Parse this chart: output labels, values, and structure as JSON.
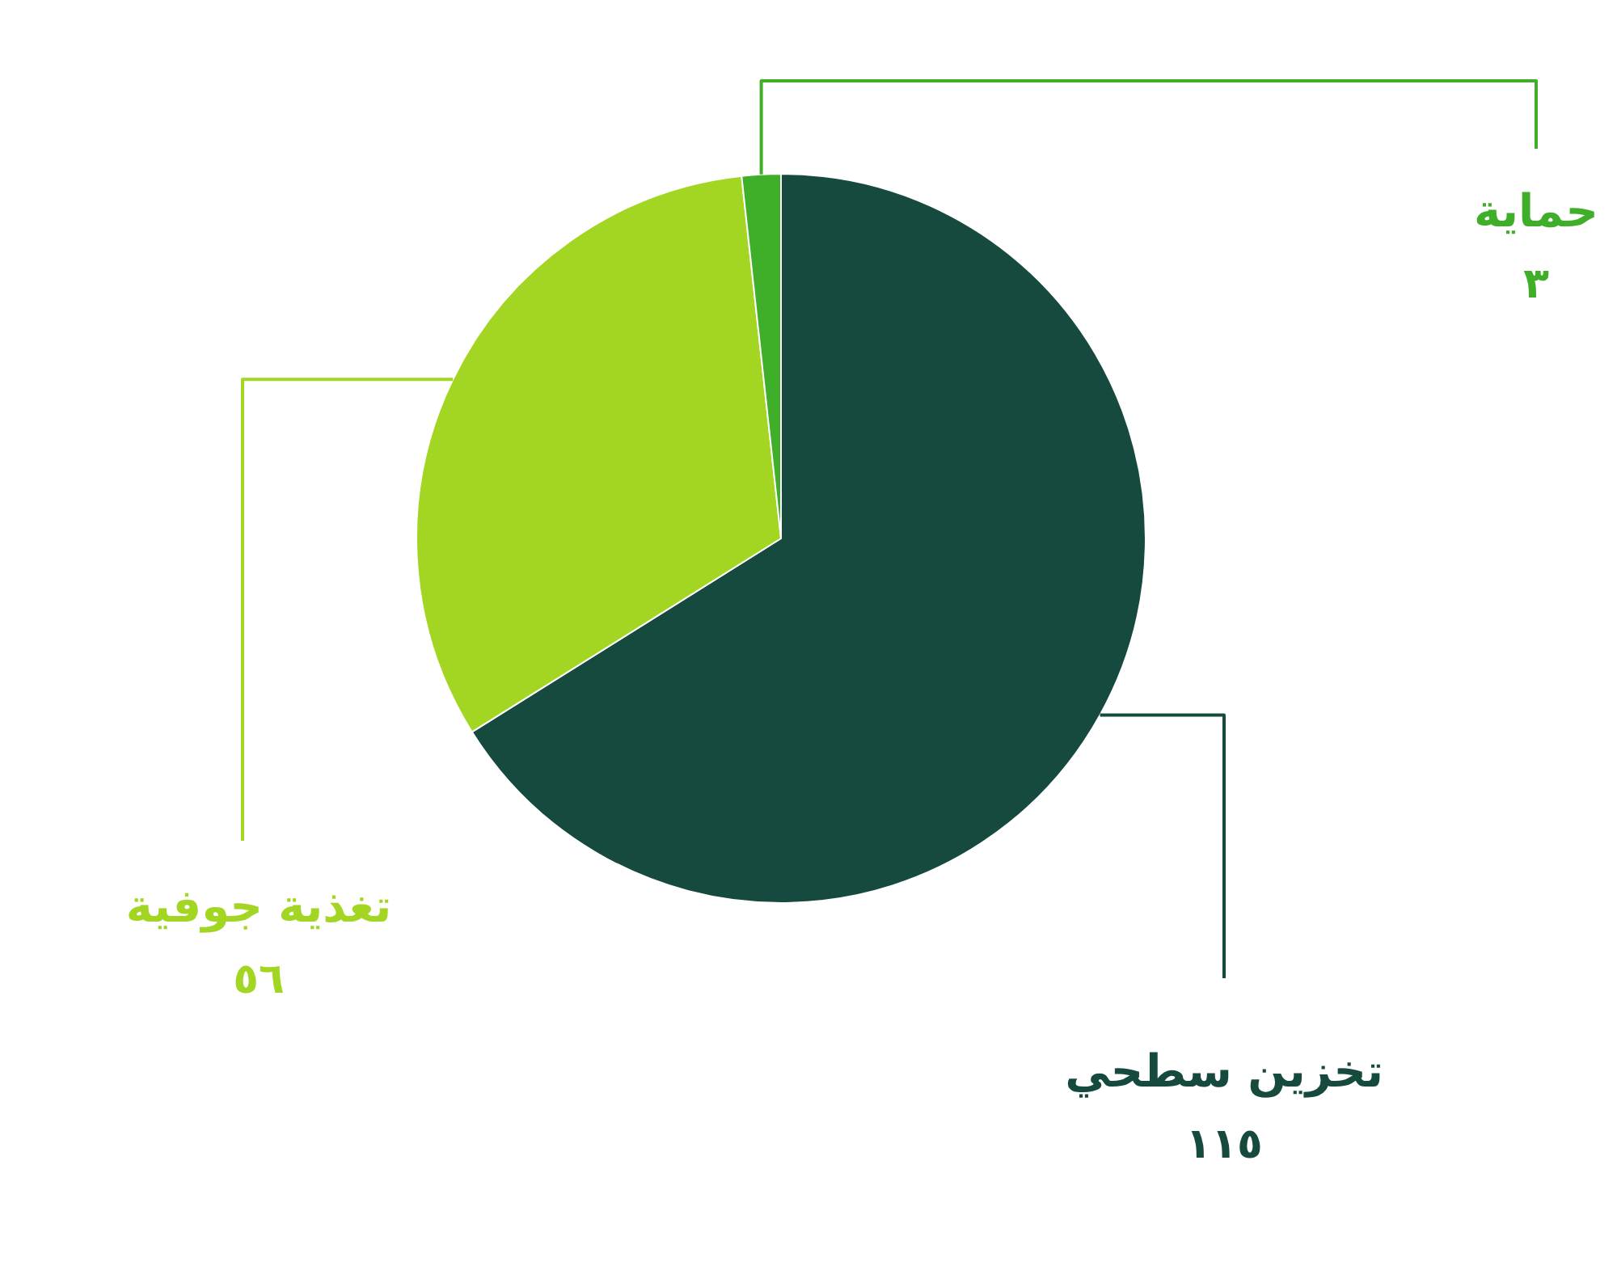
{
  "chart_data": {
    "type": "pie",
    "categories": [
      "تخزين سطحي",
      "تغذية جوفية",
      "حماية"
    ],
    "values": [
      115,
      56,
      3
    ],
    "value_labels": [
      "١١٥",
      "٥٦",
      "٣"
    ],
    "colors": [
      "#174a3e",
      "#a3d623",
      "#3fae29"
    ],
    "legend": false
  }
}
